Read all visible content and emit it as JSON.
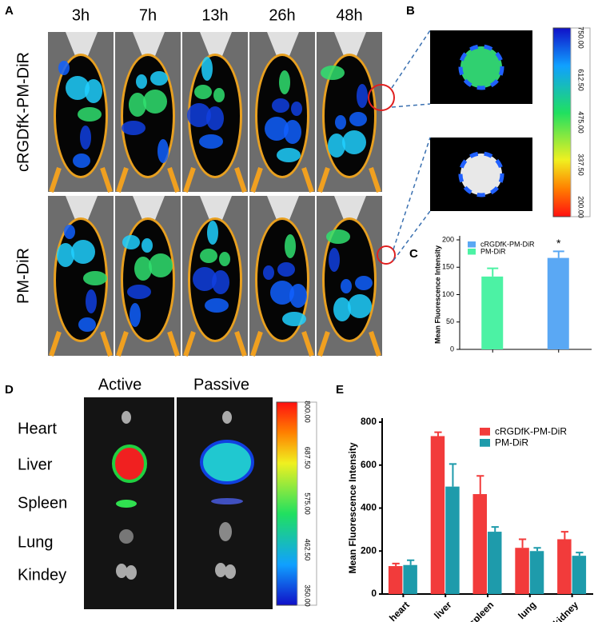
{
  "panel_labels": [
    "A",
    "B",
    "C",
    "D",
    "E"
  ],
  "panel_a": {
    "times": [
      "3h",
      "7h",
      "13h",
      "26h",
      "48h"
    ],
    "rows": [
      "cRGDfK-PM-DiR",
      "PM-DiR"
    ]
  },
  "panel_b": {
    "colorbar": [
      "750.00",
      "612.50",
      "475.00",
      "337.50",
      "200.00"
    ]
  },
  "panel_d": {
    "columns": [
      "Active",
      "Passive"
    ],
    "organs": [
      "Heart",
      "Liver",
      "Spleen",
      "Lung",
      "Kindey"
    ],
    "colorbar": [
      "800.00",
      "687.50",
      "575.00",
      "462.50",
      "350.00"
    ]
  },
  "chart_data": [
    {
      "type": "bar",
      "y_label": "Mean Fluorescence Intensity",
      "categories": [
        null,
        null
      ],
      "series": [
        {
          "name": "cRGDfK-PM-DiR",
          "color": "#5aa8f4",
          "values": [
            null,
            167
          ],
          "errors": [
            null,
            12
          ]
        },
        {
          "name": "PM-DiR",
          "color": "#4cf2a4",
          "values": [
            133,
            null
          ],
          "errors": [
            15,
            null
          ]
        }
      ],
      "annotation": "*",
      "ylim": [
        0,
        200
      ],
      "yticks": [
        0,
        50,
        100,
        150,
        200
      ],
      "legend": "top-left"
    },
    {
      "type": "bar",
      "y_label": "Mean Fluorescence Intensity",
      "categories": [
        "heart",
        "liver",
        "spleen",
        "lung",
        "kidney"
      ],
      "series": [
        {
          "name": "cRGDfK-PM-DiR",
          "color": "#f23b3b",
          "values": [
            130,
            735,
            465,
            215,
            255
          ],
          "errors": [
            12,
            18,
            85,
            40,
            35
          ]
        },
        {
          "name": "PM-DiR",
          "color": "#1e9bab",
          "values": [
            135,
            500,
            290,
            200,
            178
          ],
          "errors": [
            22,
            105,
            22,
            15,
            15
          ]
        }
      ],
      "ylim": [
        0,
        800
      ],
      "yticks": [
        0,
        200,
        400,
        600,
        800
      ],
      "legend": "top-right"
    }
  ]
}
